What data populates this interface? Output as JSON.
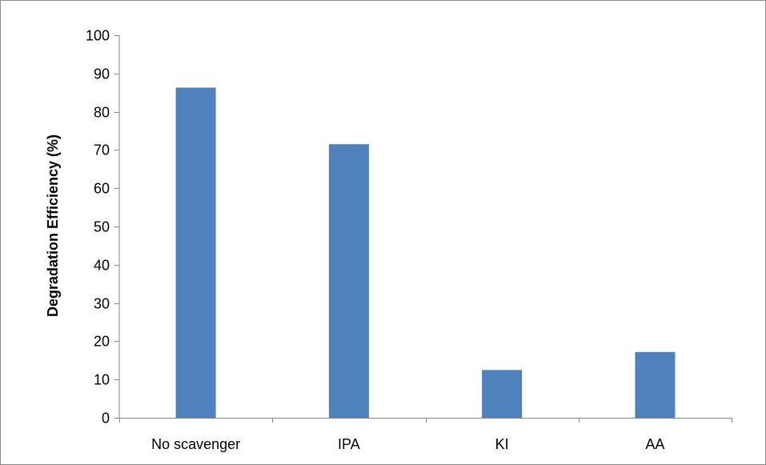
{
  "chart_data": {
    "type": "bar",
    "title": "",
    "xlabel": "",
    "ylabel": "Degradation Efficiency (%)",
    "categories": [
      "No scavenger",
      "IPA",
      "KI",
      "AA"
    ],
    "series": [
      {
        "values": [
          86.3,
          71.5,
          12.5,
          17.2
        ]
      }
    ],
    "ylim": [
      0,
      100
    ],
    "yticks": [
      0,
      10,
      20,
      30,
      40,
      50,
      60,
      70,
      80,
      90,
      100
    ],
    "grid": false,
    "legend": "none",
    "colors": {
      "bar": "#4f81bd",
      "axis": "#868686",
      "frame": "#8c8c8c"
    }
  }
}
